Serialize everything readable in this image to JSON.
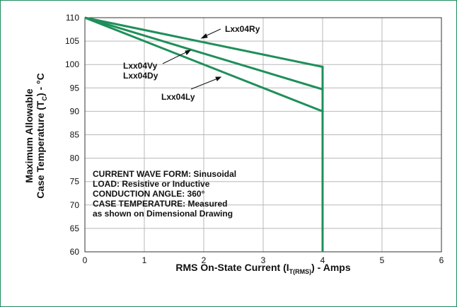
{
  "chart_data": {
    "type": "line",
    "xlabel_parts": [
      "RMS On-State Current (I",
      "T(RMS)",
      ") - Amps"
    ],
    "ylabel_line1": "Maximum Allowable",
    "ylabel_line2_parts": [
      "Case Temperature (T",
      "C",
      ") - °C"
    ],
    "xlim": [
      0,
      6
    ],
    "ylim": [
      60,
      110
    ],
    "x_ticks": [
      "0",
      "1",
      "2",
      "3",
      "4",
      "5",
      "6"
    ],
    "y_ticks": [
      "60",
      "65",
      "70",
      "75",
      "80",
      "85",
      "90",
      "95",
      "100",
      "105",
      "110"
    ],
    "grid": true,
    "series": [
      {
        "name": "Lxx04Ry",
        "x": [
          0,
          4,
          4
        ],
        "y": [
          110,
          99.5,
          60
        ]
      },
      {
        "name": "Lxx04Vy\nLxx04Dy",
        "x": [
          0,
          4,
          4
        ],
        "y": [
          110,
          94.7,
          60
        ]
      },
      {
        "name": "Lxx04Ly",
        "x": [
          0,
          4,
          4
        ],
        "y": [
          110,
          90,
          60
        ]
      }
    ],
    "line_color": "#1f8f5a",
    "annotations": [
      "CURRENT WAVE FORM: Sinusoidal",
      "LOAD: Resistive or Inductive",
      "CONDUCTION ANGLE: 360°",
      "CASE TEMPERATURE: Measured",
      "as shown on Dimensional Drawing"
    ]
  }
}
